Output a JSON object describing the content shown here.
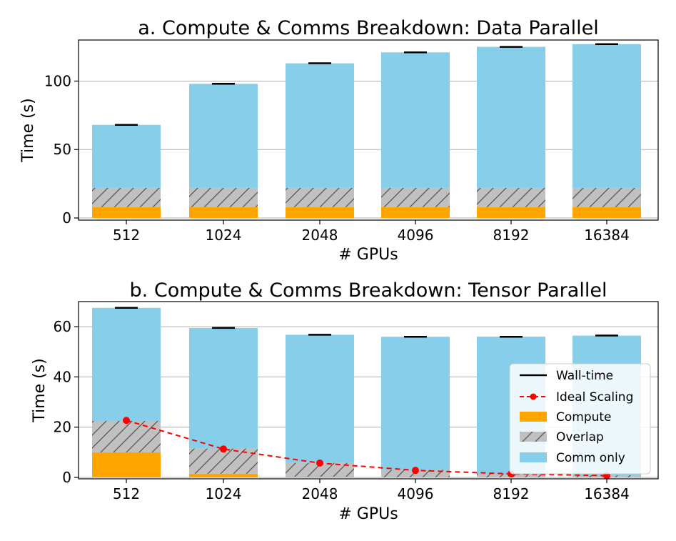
{
  "chart_data": [
    {
      "type": "bar",
      "stacked": true,
      "title": "a. Compute & Comms Breakdown: Data Parallel",
      "xlabel": "# GPUs",
      "ylabel": "Time (s)",
      "categories": [
        "512",
        "1024",
        "2048",
        "4096",
        "8192",
        "16384"
      ],
      "ylim": [
        0,
        130
      ],
      "yticks": [
        0,
        50,
        100
      ],
      "grid": true,
      "series": [
        {
          "name": "Compute",
          "color": "#ffa500",
          "values": [
            8,
            8,
            8,
            8,
            8,
            8
          ]
        },
        {
          "name": "Overlap",
          "color": "#c0c0c0",
          "hatch": true,
          "values": [
            14,
            14,
            14,
            14,
            14,
            14
          ]
        },
        {
          "name": "Comm only",
          "color": "#87ceeb",
          "values": [
            46,
            76,
            91,
            99,
            103,
            105
          ]
        }
      ],
      "wall_time": [
        68,
        98,
        113,
        121,
        125,
        127
      ]
    },
    {
      "type": "bar",
      "stacked": true,
      "title": "b. Compute & Comms Breakdown: Tensor Parallel",
      "xlabel": "# GPUs",
      "ylabel": "Time (s)",
      "categories": [
        "512",
        "1024",
        "2048",
        "4096",
        "8192",
        "16384"
      ],
      "ylim": [
        0,
        70
      ],
      "yticks": [
        0,
        20,
        40,
        60
      ],
      "grid": true,
      "legend_position": "lower-right",
      "series": [
        {
          "name": "Compute",
          "color": "#ffa500",
          "values": [
            10,
            1.5,
            0.3,
            0.1,
            0.05,
            0.05
          ]
        },
        {
          "name": "Overlap",
          "color": "#c0c0c0",
          "hatch": true,
          "values": [
            12.5,
            10,
            5.5,
            2.9,
            1.5,
            0.8
          ]
        },
        {
          "name": "Comm only",
          "color": "#87ceeb",
          "values": [
            45,
            48,
            51,
            53,
            54.5,
            55.6
          ]
        }
      ],
      "wall_time": [
        67.5,
        59.5,
        56.8,
        56.0,
        56.0,
        56.5
      ],
      "ideal_scaling": [
        22.7,
        11.3,
        5.7,
        2.8,
        1.4,
        0.7
      ],
      "legend": [
        "Wall-time",
        "Ideal Scaling",
        "Compute",
        "Overlap",
        "Comm only"
      ]
    }
  ]
}
